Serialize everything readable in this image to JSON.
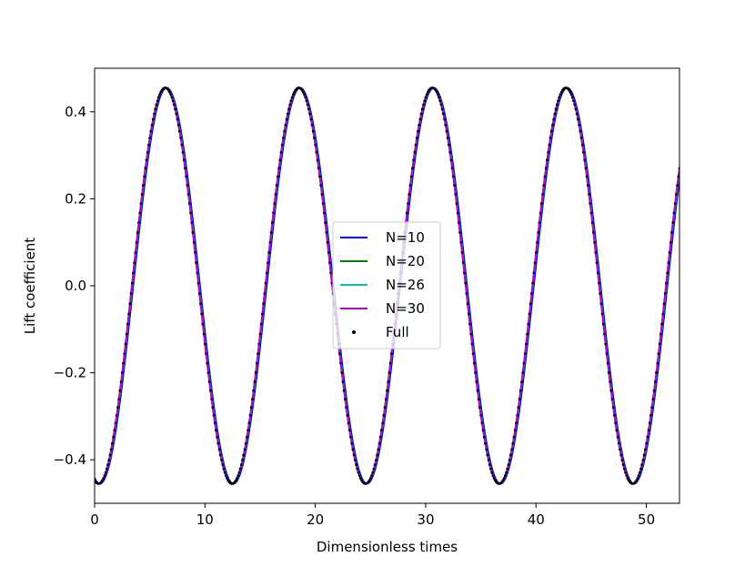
{
  "chart_data": {
    "type": "line",
    "title": "",
    "xlabel": "Dimensionless times",
    "ylabel": "Lift coefficient",
    "xlim": [
      0,
      53
    ],
    "ylim": [
      -0.5,
      0.5
    ],
    "xticks": [
      0,
      10,
      20,
      30,
      40,
      50
    ],
    "xtick_labels": [
      "0",
      "10",
      "20",
      "30",
      "40",
      "50"
    ],
    "yticks": [
      -0.4,
      -0.2,
      0.0,
      0.2,
      0.4
    ],
    "ytick_labels": [
      "−0.4",
      "−0.2",
      "0.0",
      "0.2",
      "0.4"
    ],
    "grid": false,
    "legend_position": "center",
    "signal": {
      "form": "sinusoid",
      "amplitude": 0.455,
      "period": 12.1,
      "phase_min_at": 0.35,
      "x_range": [
        0,
        53
      ]
    },
    "peaks": [
      {
        "x": 6.4,
        "y": 0.455
      },
      {
        "x": 18.5,
        "y": 0.455
      },
      {
        "x": 30.6,
        "y": 0.455
      },
      {
        "x": 42.7,
        "y": 0.455
      }
    ],
    "troughs": [
      {
        "x": 0.35,
        "y": -0.455
      },
      {
        "x": 12.45,
        "y": -0.455
      },
      {
        "x": 24.55,
        "y": -0.455
      },
      {
        "x": 36.65,
        "y": -0.455
      },
      {
        "x": 48.75,
        "y": -0.455
      }
    ],
    "series": [
      {
        "name": "N=10",
        "color": "#0000ff",
        "style": "line",
        "x_offset": 0.12
      },
      {
        "name": "N=20",
        "color": "#008000",
        "style": "line",
        "x_offset": 0.04
      },
      {
        "name": "N=26",
        "color": "#00bfbf",
        "style": "line",
        "x_offset": 0.02
      },
      {
        "name": "N=30",
        "color": "#bf00bf",
        "style": "line",
        "x_offset": 0.0
      },
      {
        "name": "Full",
        "color": "#000000",
        "style": "points",
        "x_offset": 0.0
      }
    ]
  }
}
